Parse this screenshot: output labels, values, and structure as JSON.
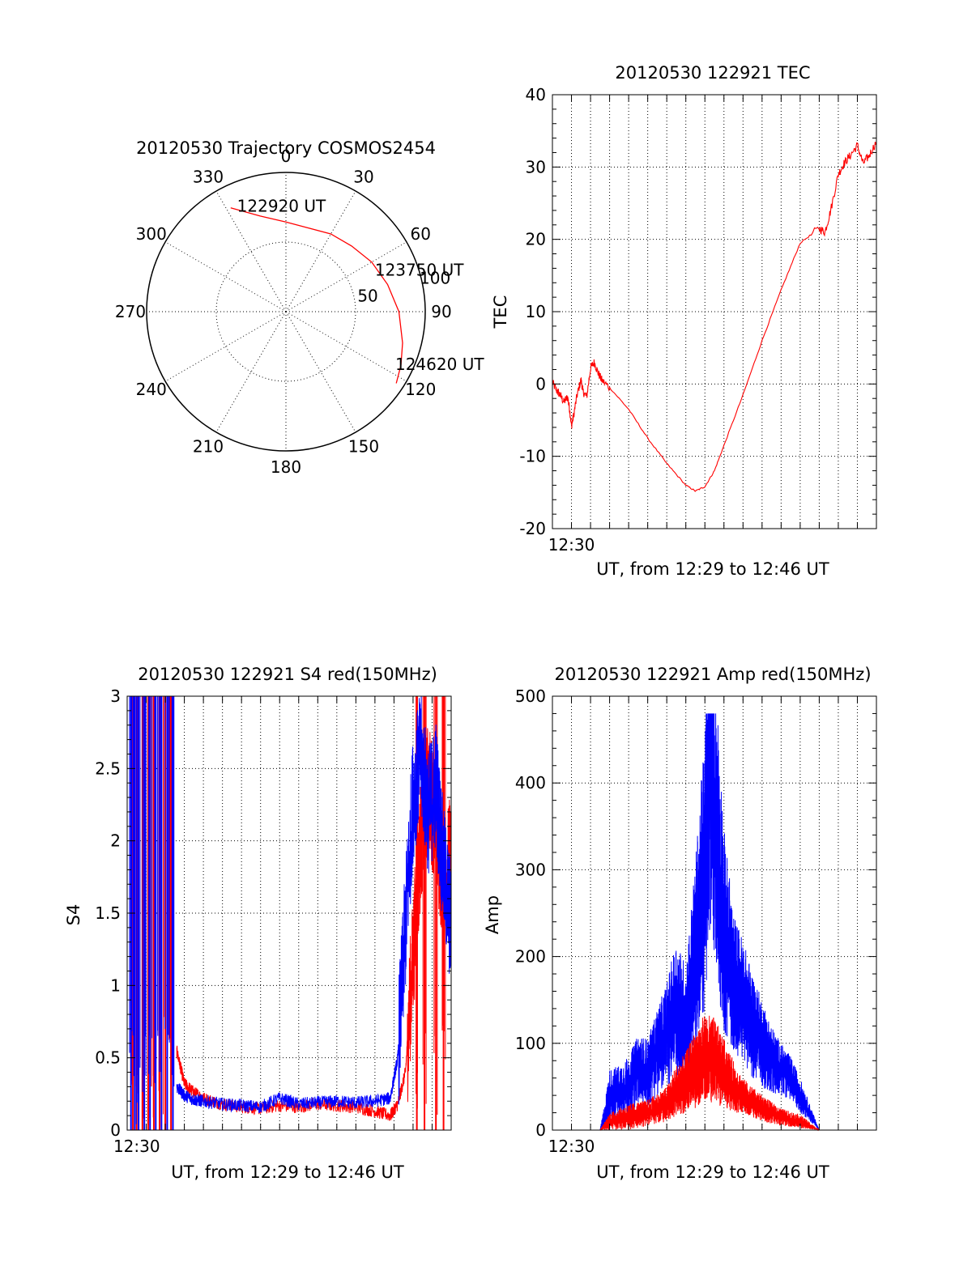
{
  "colors": {
    "red": "#ff0000",
    "blue": "#0000ff",
    "axis": "#000000",
    "background": "#ffffff"
  },
  "chart_data": [
    {
      "id": "trajectory",
      "type": "polar",
      "title": "20120530 Trajectory COSMOS2454",
      "azimuth_labels": [
        "0",
        "30",
        "60",
        "90",
        "120",
        "150",
        "180",
        "210",
        "240",
        "270",
        "300",
        "330"
      ],
      "azimuths": [
        0,
        30,
        60,
        90,
        120,
        150,
        180,
        210,
        240,
        270,
        300,
        330
      ],
      "radial_labels": [
        "50",
        "100"
      ],
      "radial_values": [
        50,
        100
      ],
      "track": {
        "color": "#ff0000",
        "points": [
          {
            "az": 332,
            "el": 14
          },
          {
            "az": 345,
            "el": 26
          },
          {
            "az": 0,
            "el": 32
          },
          {
            "az": 15,
            "el": 34
          },
          {
            "az": 30,
            "el": 32
          },
          {
            "az": 45,
            "el": 30
          },
          {
            "az": 60,
            "el": 26
          },
          {
            "az": 75,
            "el": 22
          },
          {
            "az": 90,
            "el": 17
          },
          {
            "az": 105,
            "el": 12
          },
          {
            "az": 115,
            "el": 8
          },
          {
            "az": 123,
            "el": 5
          }
        ]
      },
      "annotations": [
        {
          "text": "122920 UT",
          "az": 334,
          "el": 18
        },
        {
          "text": "123750 UT",
          "az": 68,
          "el": 28
        },
        {
          "text": "124620 UT",
          "az": 118,
          "el": 10
        }
      ]
    },
    {
      "id": "tec",
      "type": "line",
      "title": "20120530 122921 TEC",
      "xlabel": "UT, from 12:29 to 12:46 UT",
      "ylabel": "TEC",
      "xlim": [
        0,
        17
      ],
      "ylim": [
        -20,
        40
      ],
      "yticks": [
        -20,
        -10,
        0,
        10,
        20,
        30,
        40
      ],
      "xtick_labels": [
        {
          "x": 1,
          "label": "12:30"
        }
      ],
      "grid": true,
      "series": [
        {
          "color": "#ff0000",
          "x": [
            0,
            0.2,
            0.4,
            0.6,
            0.8,
            0.9,
            1.0,
            1.1,
            1.3,
            1.5,
            1.6,
            1.8,
            2.0,
            2.2,
            2.4,
            2.6,
            3.0,
            4.0,
            5.0,
            6.0,
            7.0,
            7.5,
            8.0,
            8.5,
            9.0,
            10.0,
            11.0,
            12.0,
            13.0,
            14.0,
            14.3,
            14.6,
            15.0,
            15.3,
            15.6,
            16.0,
            16.3,
            16.6,
            17.0
          ],
          "y": [
            0.2,
            -0.8,
            -1.5,
            -2.5,
            -1.8,
            -3.5,
            -5.8,
            -4.5,
            -1.5,
            0.6,
            -1.0,
            -1.8,
            2.2,
            3.0,
            1.5,
            0.5,
            -0.5,
            -3.5,
            -7.5,
            -11.0,
            -14.0,
            -14.8,
            -14.2,
            -12.0,
            -8.5,
            -1.5,
            6.0,
            13.0,
            19.5,
            21.5,
            21.0,
            24.0,
            29.0,
            30.5,
            31.5,
            33.0,
            30.5,
            31.5,
            33.5
          ]
        }
      ]
    },
    {
      "id": "s4",
      "type": "line",
      "title": "20120530 122921 S4 red(150MHz)",
      "xlabel": "UT, from 12:29 to 12:46 UT",
      "ylabel": "S4",
      "xlim": [
        0,
        17
      ],
      "ylim": [
        0,
        3
      ],
      "yticks": [
        0,
        0.5,
        1,
        1.5,
        2,
        2.5,
        3
      ],
      "ytick_labels": [
        "0",
        "0.5",
        "1",
        "1.5",
        "2",
        "2.5",
        "3"
      ],
      "xtick_labels": [
        {
          "x": 0.5,
          "label": "12:30"
        }
      ],
      "grid": true,
      "series": [
        {
          "color": "#ff0000",
          "x": [
            2.6,
            3.0,
            3.5,
            4.0,
            5.0,
            6.0,
            7.0,
            8.0,
            9.0,
            10.0,
            11.0,
            12.0,
            13.0,
            13.8,
            14.2,
            14.6,
            15.0,
            15.4,
            15.8,
            16.2,
            16.6,
            17.0
          ],
          "y": [
            0.55,
            0.32,
            0.26,
            0.22,
            0.18,
            0.16,
            0.15,
            0.17,
            0.16,
            0.18,
            0.17,
            0.16,
            0.13,
            0.1,
            0.18,
            0.4,
            1.2,
            2.0,
            2.4,
            2.1,
            1.7,
            1.9
          ],
          "spikes_x": [
            0.3,
            0.5,
            0.8,
            1.1,
            1.4,
            1.7,
            2.0,
            2.3,
            15.2,
            15.6,
            16.2,
            16.6
          ],
          "spike_top": 3
        },
        {
          "color": "#0000ff",
          "x": [
            2.6,
            3.0,
            3.5,
            4.0,
            5.0,
            6.0,
            7.0,
            8.0,
            9.0,
            10.0,
            11.0,
            12.0,
            13.0,
            13.8,
            14.2,
            14.6,
            15.0,
            15.4,
            15.8,
            16.2,
            16.6,
            17.0
          ],
          "y": [
            0.3,
            0.24,
            0.21,
            0.2,
            0.18,
            0.17,
            0.16,
            0.22,
            0.18,
            0.19,
            0.2,
            0.19,
            0.2,
            0.22,
            0.5,
            1.4,
            2.3,
            2.6,
            2.2,
            2.4,
            1.8,
            1.4
          ],
          "spikes_x": [
            0.2,
            0.4,
            0.6,
            0.9,
            1.2,
            1.5,
            1.8,
            2.1,
            2.4
          ],
          "spike_top": 3
        }
      ]
    },
    {
      "id": "amp",
      "type": "line",
      "title": "20120530 122921 Amp red(150MHz)",
      "xlabel": "UT, from 12:29 to 12:46 UT",
      "ylabel": "Amp",
      "xlim": [
        0,
        17
      ],
      "ylim": [
        0,
        500
      ],
      "yticks": [
        0,
        100,
        200,
        300,
        400,
        500
      ],
      "xtick_labels": [
        {
          "x": 1,
          "label": "12:30"
        }
      ],
      "grid": true,
      "series": [
        {
          "color": "#0000ff",
          "x": [
            0,
            2.5,
            2.8,
            3.0,
            3.5,
            4.0,
            4.5,
            5.0,
            5.5,
            6.0,
            6.5,
            7.0,
            7.5,
            8.0,
            8.3,
            8.6,
            9.0,
            9.5,
            10.0,
            10.5,
            11.0,
            11.5,
            12.0,
            12.5,
            13.0,
            14.0,
            17.0
          ],
          "y": [
            0,
            0,
            20,
            40,
            45,
            50,
            70,
            65,
            90,
            110,
            140,
            120,
            200,
            300,
            420,
            350,
            230,
            170,
            150,
            120,
            100,
            80,
            70,
            60,
            40,
            0,
            0
          ],
          "band_width": [
            0,
            0,
            20,
            30,
            30,
            35,
            40,
            40,
            50,
            60,
            80,
            70,
            110,
            160,
            200,
            170,
            120,
            80,
            70,
            60,
            50,
            40,
            30,
            25,
            20,
            0,
            0
          ]
        },
        {
          "color": "#ff0000",
          "x": [
            0,
            2.5,
            3.0,
            4.0,
            5.0,
            6.0,
            6.5,
            7.0,
            7.5,
            8.0,
            8.5,
            9.0,
            9.5,
            10.0,
            11.0,
            12.0,
            13.0,
            14.0,
            17.0
          ],
          "y": [
            0,
            0,
            10,
            15,
            20,
            30,
            45,
            55,
            70,
            85,
            80,
            65,
            50,
            40,
            25,
            15,
            10,
            0,
            0
          ],
          "band_width": [
            0,
            0,
            10,
            15,
            15,
            20,
            30,
            35,
            45,
            50,
            50,
            40,
            30,
            20,
            15,
            10,
            8,
            0,
            0
          ]
        }
      ]
    }
  ]
}
